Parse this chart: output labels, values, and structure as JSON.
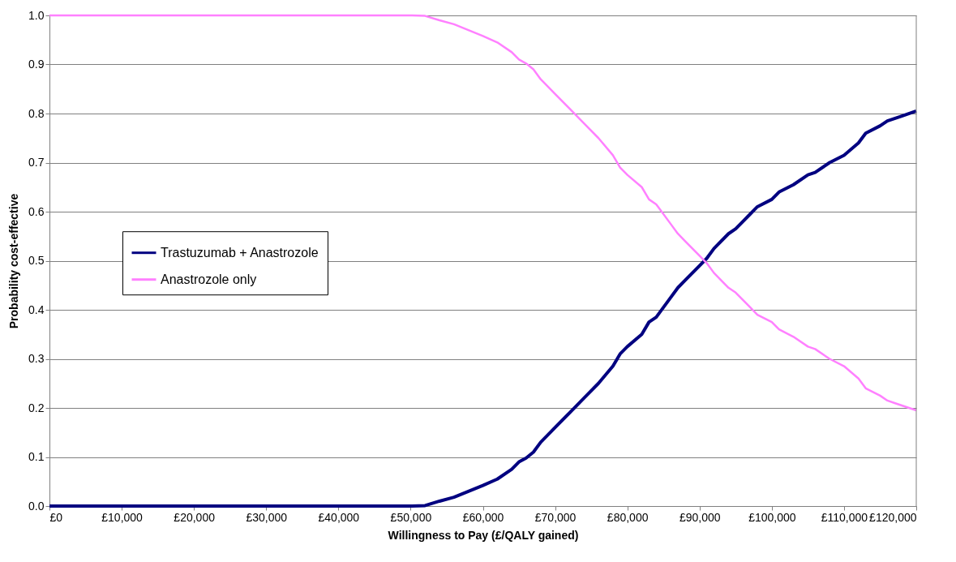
{
  "chart_data": {
    "type": "line",
    "xlabel": "Willingness to Pay (£/QALY gained)",
    "ylabel": "Probability cost-effective",
    "x": [
      0,
      10000,
      20000,
      30000,
      40000,
      50000,
      52000,
      54000,
      56000,
      58000,
      60000,
      62000,
      64000,
      65000,
      66000,
      67000,
      68000,
      70000,
      72000,
      74000,
      76000,
      78000,
      79000,
      80000,
      82000,
      83000,
      84000,
      86000,
      87000,
      88000,
      90000,
      91000,
      92000,
      94000,
      95000,
      96000,
      97000,
      98000,
      100000,
      101000,
      103000,
      105000,
      106000,
      108000,
      110000,
      112000,
      113000,
      115000,
      116000,
      117000,
      118000,
      120000
    ],
    "series": [
      {
        "name": "Trastuzumab + Anastrozole",
        "color": "#000080",
        "values": [
          0,
          0,
          0,
          0,
          0,
          0,
          0.001,
          0.01,
          0.018,
          0.03,
          0.042,
          0.055,
          0.075,
          0.09,
          0.098,
          0.11,
          0.13,
          0.16,
          0.19,
          0.22,
          0.25,
          0.285,
          0.31,
          0.325,
          0.35,
          0.375,
          0.385,
          0.425,
          0.445,
          0.46,
          0.49,
          0.505,
          0.525,
          0.555,
          0.565,
          0.58,
          0.595,
          0.61,
          0.625,
          0.64,
          0.655,
          0.675,
          0.68,
          0.7,
          0.715,
          0.74,
          0.76,
          0.775,
          0.785,
          0.79,
          0.795,
          0.805
        ]
      },
      {
        "name": "Anastrozole only",
        "color": "#ff80ff",
        "values": [
          1,
          1,
          1,
          1,
          1,
          1,
          0.999,
          0.99,
          0.982,
          0.97,
          0.958,
          0.945,
          0.925,
          0.91,
          0.902,
          0.89,
          0.87,
          0.84,
          0.81,
          0.78,
          0.75,
          0.715,
          0.69,
          0.675,
          0.65,
          0.625,
          0.615,
          0.575,
          0.555,
          0.54,
          0.51,
          0.495,
          0.475,
          0.445,
          0.435,
          0.42,
          0.405,
          0.39,
          0.375,
          0.36,
          0.345,
          0.325,
          0.32,
          0.3,
          0.285,
          0.26,
          0.24,
          0.225,
          0.215,
          0.21,
          0.205,
          0.195
        ]
      }
    ],
    "xlim": [
      0,
      120000
    ],
    "xticks": [
      {
        "value": 0,
        "label": "£0"
      },
      {
        "value": 10000,
        "label": "£10,000"
      },
      {
        "value": 20000,
        "label": "£20,000"
      },
      {
        "value": 30000,
        "label": "£30,000"
      },
      {
        "value": 40000,
        "label": "£40,000"
      },
      {
        "value": 50000,
        "label": "£50,000"
      },
      {
        "value": 60000,
        "label": "£60,000"
      },
      {
        "value": 70000,
        "label": "£70,000"
      },
      {
        "value": 80000,
        "label": "£80,000"
      },
      {
        "value": 90000,
        "label": "£90,000"
      },
      {
        "value": 100000,
        "label": "£100,000"
      },
      {
        "value": 110000,
        "label": "£110,000"
      },
      {
        "value": 120000,
        "label": "£120,000"
      }
    ],
    "ylim": [
      0,
      1
    ],
    "yticks": [
      {
        "value": 0,
        "label": "0.0"
      },
      {
        "value": 0.1,
        "label": "0.1"
      },
      {
        "value": 0.2,
        "label": "0.2"
      },
      {
        "value": 0.3,
        "label": "0.3"
      },
      {
        "value": 0.4,
        "label": "0.4"
      },
      {
        "value": 0.5,
        "label": "0.5"
      },
      {
        "value": 0.6,
        "label": "0.6"
      },
      {
        "value": 0.7,
        "label": "0.7"
      },
      {
        "value": 0.8,
        "label": "0.8"
      },
      {
        "value": 0.9,
        "label": "0.9"
      },
      {
        "value": 1,
        "label": "1.0"
      }
    ],
    "grid": "y",
    "legend": "left",
    "marker": "none",
    "line_style": "solid"
  }
}
